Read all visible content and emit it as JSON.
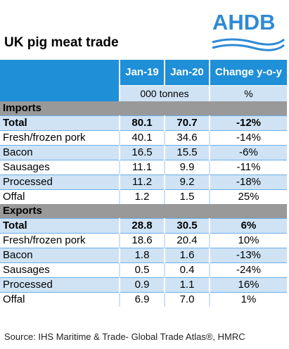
{
  "title": "UK pig meat trade",
  "logo": {
    "text": "AHDB"
  },
  "header": {
    "col1": "Jan-19",
    "col2": "Jan-20",
    "col3": "Change y-o-y"
  },
  "units": {
    "tonnes": "000 tonnes",
    "pct": "%"
  },
  "imports": {
    "label": "Imports",
    "rows": [
      {
        "name": "Total",
        "jan19": "80.1",
        "jan20": "70.7",
        "change": "-12%"
      },
      {
        "name": "Fresh/frozen pork",
        "jan19": "40.1",
        "jan20": "34.6",
        "change": "-14%"
      },
      {
        "name": "Bacon",
        "jan19": "16.5",
        "jan20": "15.5",
        "change": "-6%"
      },
      {
        "name": "Sausages",
        "jan19": "11.1",
        "jan20": "9.9",
        "change": "-11%"
      },
      {
        "name": "Processed",
        "jan19": "11.2",
        "jan20": "9.2",
        "change": "-18%"
      },
      {
        "name": "Offal",
        "jan19": "1.2",
        "jan20": "1.5",
        "change": "25%"
      }
    ]
  },
  "exports": {
    "label": "Exports",
    "rows": [
      {
        "name": "Total",
        "jan19": "28.8",
        "jan20": "30.5",
        "change": "6%"
      },
      {
        "name": "Fresh/frozen pork",
        "jan19": "18.6",
        "jan20": "20.4",
        "change": "10%"
      },
      {
        "name": "Bacon",
        "jan19": "1.8",
        "jan20": "1.6",
        "change": "-13%"
      },
      {
        "name": "Sausages",
        "jan19": "0.5",
        "jan20": "0.4",
        "change": "-24%"
      },
      {
        "name": "Processed",
        "jan19": "0.9",
        "jan20": "1.1",
        "change": "16%"
      },
      {
        "name": "Offal",
        "jan19": "6.9",
        "jan20": "7.0",
        "change": "1%"
      }
    ]
  },
  "source": "Source: IHS Maritime & Trade- Global Trade Atlas®, HMRC"
}
